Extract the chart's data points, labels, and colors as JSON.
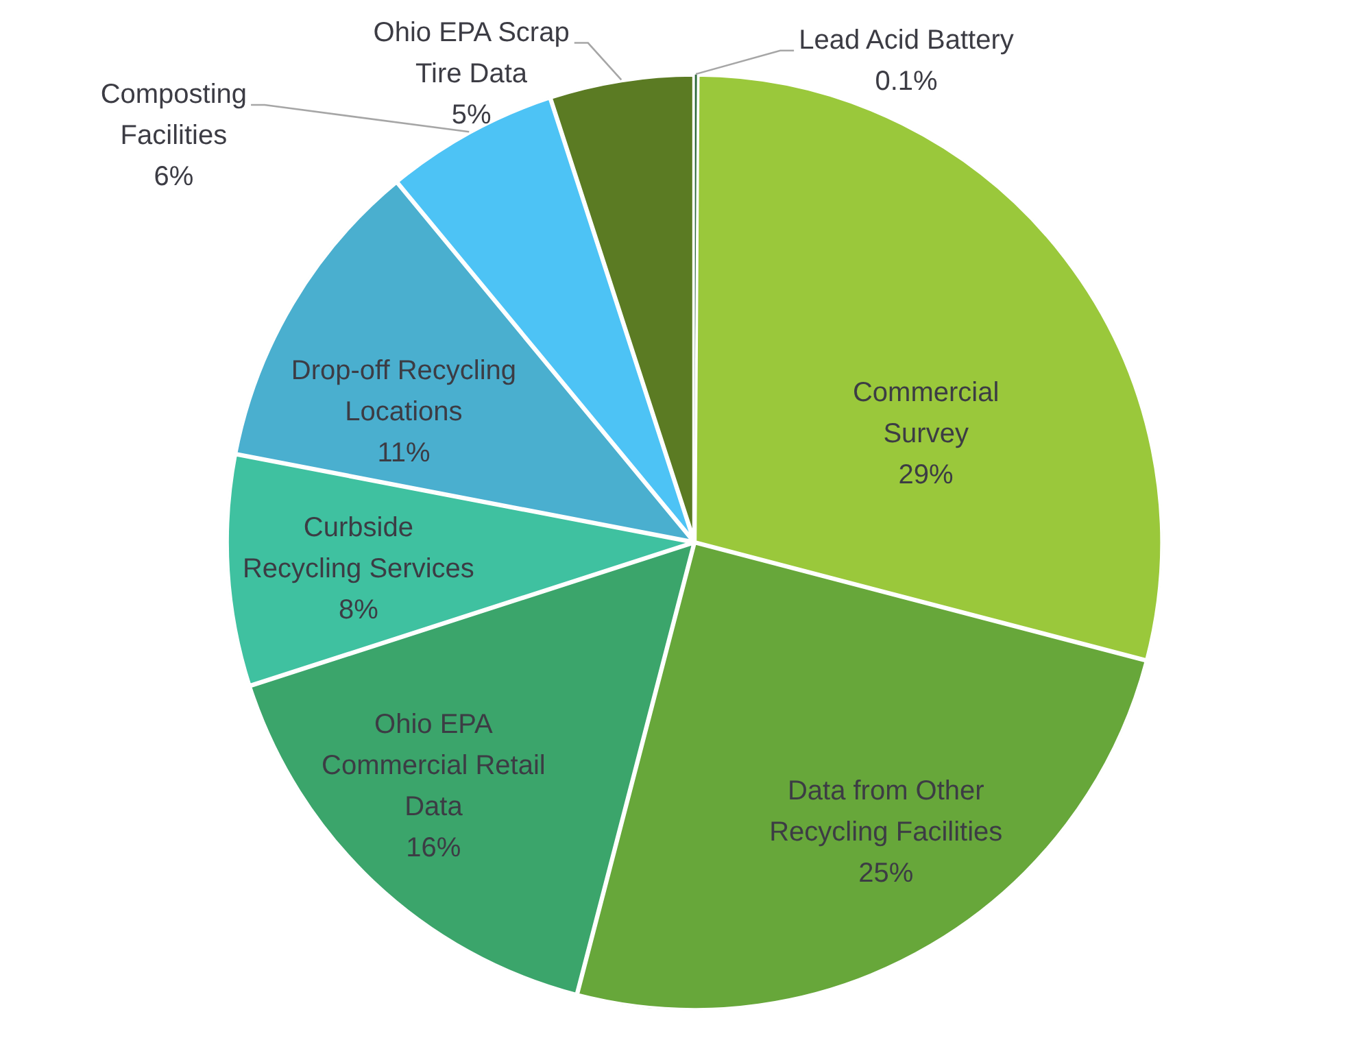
{
  "chart_data": {
    "type": "pie",
    "categories": [
      "Lead Acid Battery",
      "Commercial Survey",
      "Data from Other Recycling Facilities",
      "Ohio EPA Commercial Retail Data",
      "Curbside Recycling Services",
      "Drop-off Recycling Locations",
      "Composting Facilities",
      "Ohio EPA Scrap Tire Data"
    ],
    "values": [
      0.1,
      29,
      25,
      16,
      8,
      11,
      6,
      5
    ],
    "value_labels": [
      "0.1%",
      "29%",
      "25%",
      "16%",
      "8%",
      "11%",
      "6%",
      "5%"
    ],
    "colors": [
      "#2f6b3a",
      "#9ac83b",
      "#67a73a",
      "#3ba56b",
      "#3fc1a0",
      "#4aafcf",
      "#4dc3f5",
      "#5b7b23"
    ]
  }
}
